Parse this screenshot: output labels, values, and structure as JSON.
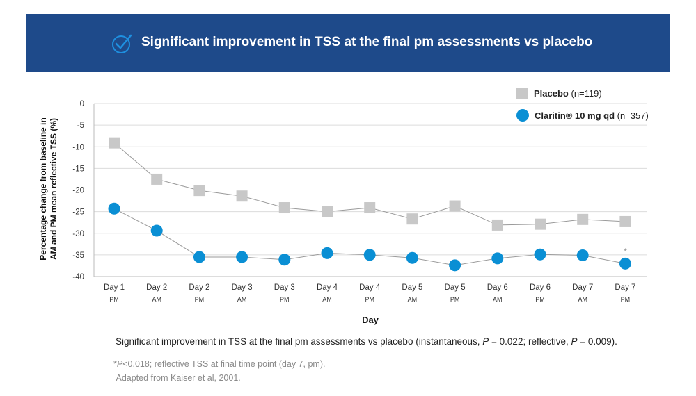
{
  "banner": {
    "title": "Significant improvement in TSS at the final pm assessments vs placebo",
    "icon": "check-circle-icon",
    "color": "#1e4a8a"
  },
  "legend": {
    "placebo_name": "Placebo",
    "placebo_n": "(n=119)",
    "claritin_name": "Claritin® 10 mg qd",
    "claritin_n": "(n=357)"
  },
  "chart_data": {
    "type": "line",
    "xlabel": "Day",
    "ylabel_line1": "Percentage change from baseline in",
    "ylabel_line2": "AM and PM mean reflective TSS (%)",
    "ylim": [
      -40,
      0
    ],
    "yticks": [
      0,
      -5,
      -10,
      -15,
      -20,
      -25,
      -30,
      -35,
      -40
    ],
    "grid": true,
    "legend_position": "top-right",
    "categories": [
      {
        "day": "Day 1",
        "time": "PM"
      },
      {
        "day": "Day 2",
        "time": "AM"
      },
      {
        "day": "Day 2",
        "time": "PM"
      },
      {
        "day": "Day 3",
        "time": "AM"
      },
      {
        "day": "Day 3",
        "time": "PM"
      },
      {
        "day": "Day 4",
        "time": "AM"
      },
      {
        "day": "Day 4",
        "time": "PM"
      },
      {
        "day": "Day 5",
        "time": "AM"
      },
      {
        "day": "Day 5",
        "time": "PM"
      },
      {
        "day": "Day 6",
        "time": "AM"
      },
      {
        "day": "Day 6",
        "time": "PM"
      },
      {
        "day": "Day 7",
        "time": "AM"
      },
      {
        "day": "Day 7",
        "time": "PM"
      }
    ],
    "series": [
      {
        "name": "Placebo",
        "marker": "square",
        "color": "#c8c8c8",
        "values": [
          -9.1,
          -17.5,
          -20.1,
          -21.4,
          -24.1,
          -25.0,
          -24.1,
          -26.7,
          -23.7,
          -28.1,
          -27.9,
          -26.8,
          -27.3
        ]
      },
      {
        "name": "Claritin® 10 mg qd",
        "marker": "circle",
        "color": "#0a8fd4",
        "values": [
          -24.3,
          -29.4,
          -35.5,
          -35.5,
          -36.1,
          -34.6,
          -35.0,
          -35.7,
          -37.4,
          -35.8,
          -34.9,
          -35.1,
          -37.0
        ]
      }
    ],
    "annotation": {
      "text": "*",
      "index": 12
    }
  },
  "footnotes": {
    "main_pre": "Significant improvement in TSS at the final pm assessments vs placebo (instantaneous, ",
    "p1_label": "P",
    "main_mid": " = 0.022; reflective, ",
    "p2_label": "P",
    "main_post": " = 0.009).",
    "star": "*",
    "sub1_p": "P",
    "sub1_rest": "<0.018; reflective TSS at final time point (day 7, pm).",
    "sub2": "Adapted from Kaiser et al, 2001."
  }
}
